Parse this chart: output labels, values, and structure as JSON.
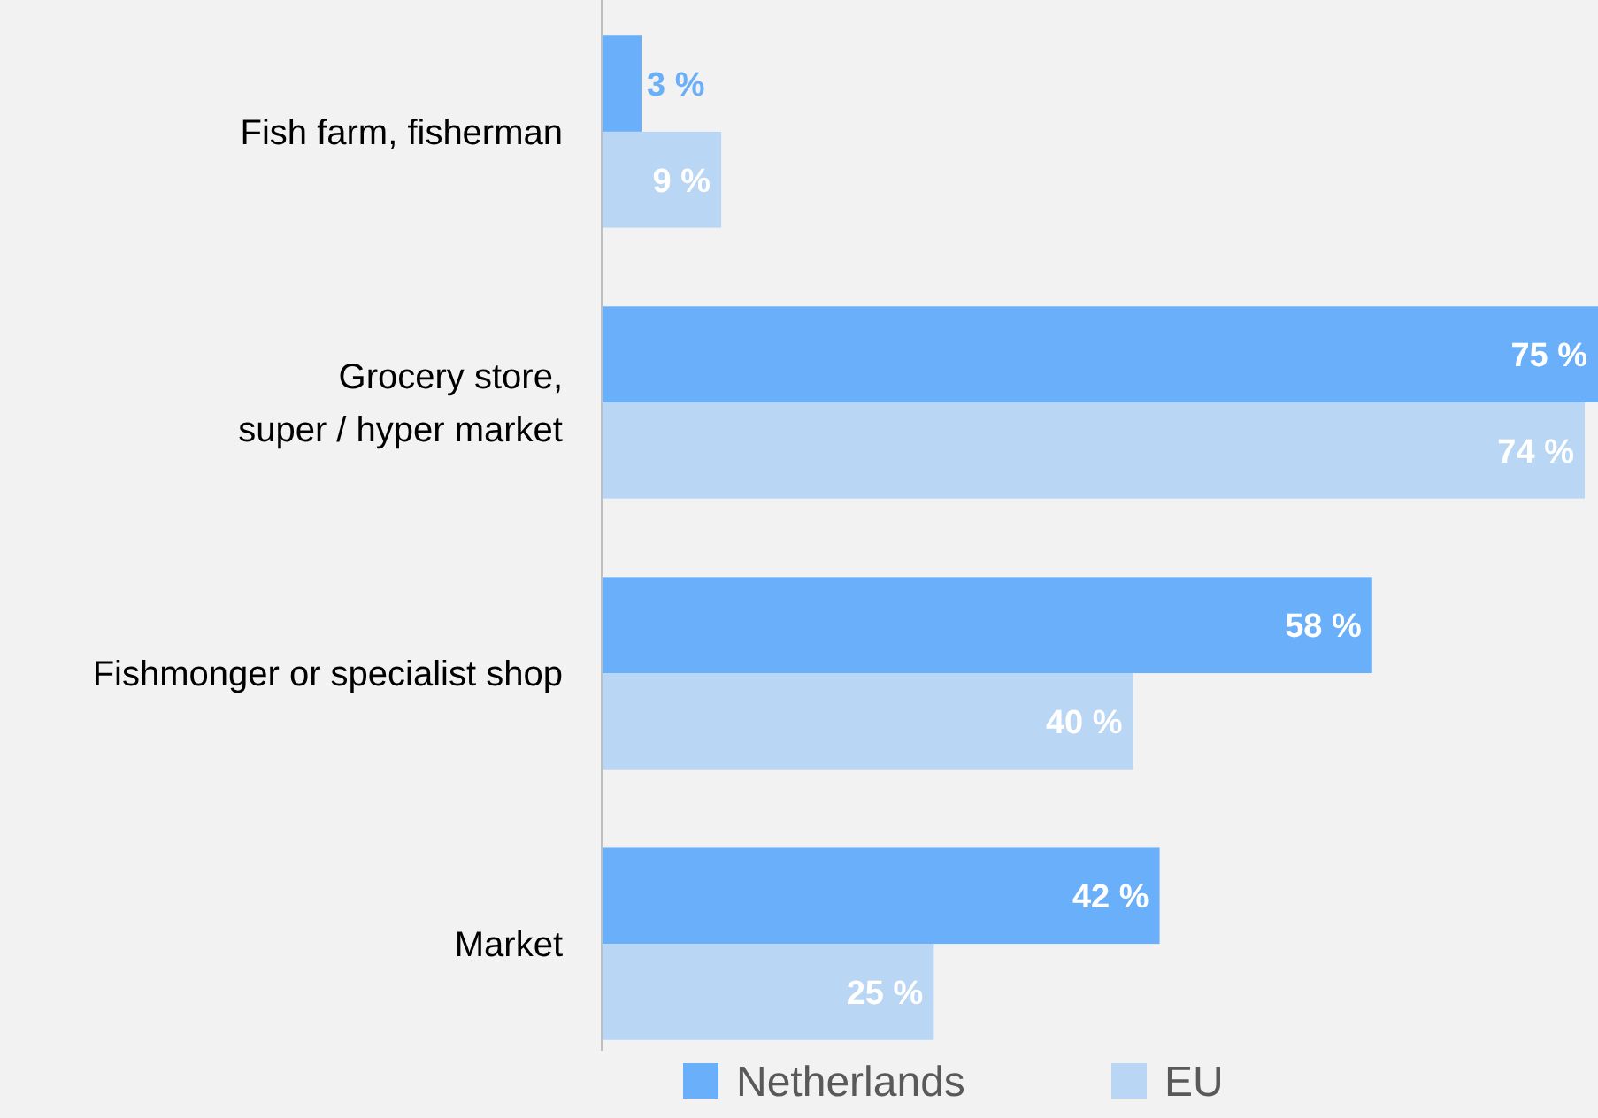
{
  "chart_data": {
    "type": "bar",
    "orientation": "horizontal",
    "categories": [
      "Fish farm, fisherman",
      "Grocery store,\nsuper / hyper market",
      "Fishmonger or specialist shop",
      "Market"
    ],
    "series": [
      {
        "name": "Netherlands",
        "color": "#69affa",
        "values": [
          3,
          75,
          58,
          42
        ],
        "value_labels": [
          "3 %",
          "75 %",
          "58 %",
          "42 %"
        ]
      },
      {
        "name": "EU",
        "color": "#b9d6f4",
        "values": [
          9,
          74,
          40,
          25
        ],
        "value_labels": [
          "9 %",
          "74 %",
          "40 %",
          "25 %"
        ]
      }
    ],
    "xlim": [
      0,
      75
    ],
    "tick_labels": "y",
    "legend": "bottom"
  }
}
